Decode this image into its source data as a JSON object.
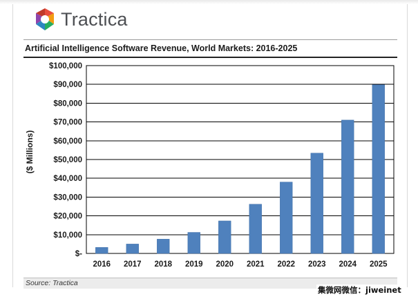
{
  "brand": {
    "logo_text": "Tractica",
    "logo_icon": "tractica-logo-icon",
    "logo_colors": [
      "#e84c3d",
      "#f39c12",
      "#27ae60",
      "#2e86c1",
      "#8e44ad"
    ]
  },
  "footer": {
    "source": "Source: Tractica",
    "watermark": "集微网微信：jiweinet"
  },
  "colors": {
    "bar": "#4f81bd",
    "bar_edge": "#3f6fa8",
    "grid": "#000000",
    "text": "#1a1a1a"
  },
  "chart_data": {
    "type": "bar",
    "title": "Artificial Intelligence Software Revenue, World Markets: 2016-2025",
    "xlabel": "",
    "ylabel": "($ Millions)",
    "categories": [
      "2016",
      "2017",
      "2018",
      "2019",
      "2020",
      "2021",
      "2022",
      "2023",
      "2024",
      "2025"
    ],
    "values": [
      3200,
      5000,
      7600,
      11200,
      17300,
      26200,
      38000,
      53400,
      71000,
      89800
    ],
    "ylim": [
      0,
      100000
    ],
    "y_ticks": [
      0,
      10000,
      20000,
      30000,
      40000,
      50000,
      60000,
      70000,
      80000,
      90000,
      100000
    ],
    "y_tick_labels": [
      "$-",
      "$10,000",
      "$20,000",
      "$30,000",
      "$40,000",
      "$50,000",
      "$60,000",
      "$70,000",
      "$80,000",
      "$90,000",
      "$100,000"
    ],
    "grid": true,
    "legend": "none"
  }
}
